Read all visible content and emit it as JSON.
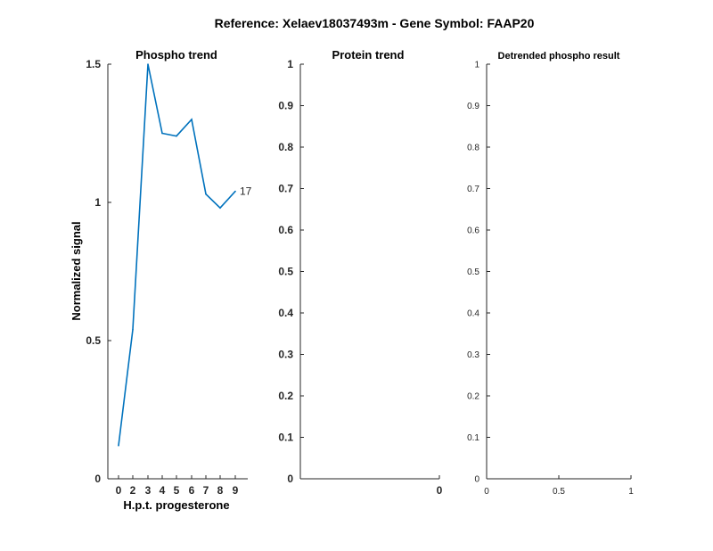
{
  "figure_title": "Reference:  Xelaev18037493m - Gene Symbol:  FAAP20",
  "chart_data": [
    {
      "type": "line",
      "title": "Phospho trend",
      "xlabel": "H.p.t. progesterone",
      "ylabel": "Normalized signal",
      "categories": [
        "0",
        "2",
        "3",
        "4",
        "5",
        "6",
        "7",
        "8",
        "9"
      ],
      "series": [
        {
          "values": [
            0.12,
            0.54,
            1.5,
            1.25,
            1.24,
            1.3,
            1.03,
            0.98,
            1.04
          ],
          "end_label": "17",
          "color": "#0072bd"
        }
      ],
      "ylim": [
        0,
        1.5
      ],
      "yticks": [
        "0",
        "0.5",
        "1",
        "1.5"
      ],
      "grid": false
    },
    {
      "type": "line",
      "title": "Protein trend",
      "xlabel": "",
      "ylabel": "",
      "series": [],
      "ylim": [
        0,
        1
      ],
      "yticks": [
        "0",
        "0.1",
        "0.2",
        "0.3",
        "0.4",
        "0.5",
        "0.6",
        "0.7",
        "0.8",
        "0.9",
        "1"
      ],
      "xticks": [
        "0"
      ],
      "grid": false
    },
    {
      "type": "line",
      "title": "Detrended phospho result",
      "xlabel": "",
      "ylabel": "",
      "series": [],
      "xlim": [
        0,
        1
      ],
      "ylim": [
        0,
        1
      ],
      "xticks": [
        "0",
        "0.5",
        "1"
      ],
      "yticks": [
        "0",
        "0.1",
        "0.2",
        "0.3",
        "0.4",
        "0.5",
        "0.6",
        "0.7",
        "0.8",
        "0.9",
        "1"
      ],
      "grid": false
    }
  ]
}
